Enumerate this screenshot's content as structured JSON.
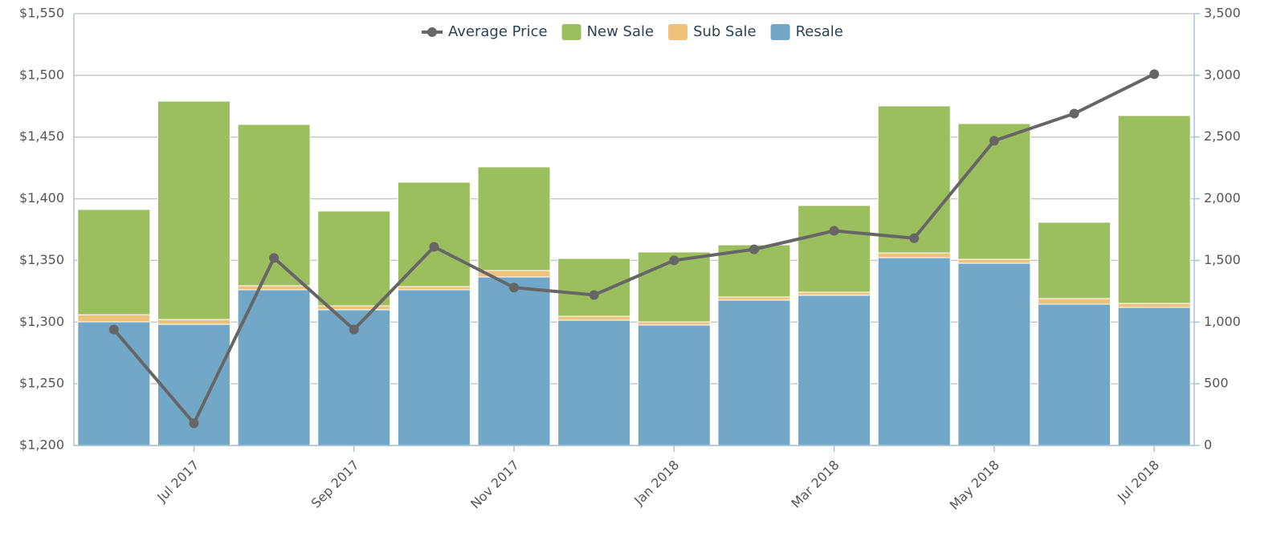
{
  "chart_data": {
    "type": "bar",
    "categories": [
      null,
      "Jul 2017",
      null,
      "Sep 2017",
      null,
      "Nov 2017",
      null,
      "Jan 2018",
      null,
      "Mar 2018",
      null,
      "May 2018",
      null,
      "Jul 2018"
    ],
    "series": [
      {
        "name": "Average Price",
        "type": "line",
        "color": "#666666",
        "values": [
          1294,
          1218,
          1352,
          1294,
          1361,
          1328,
          1322,
          1350,
          1359,
          1374,
          1368,
          1447,
          1469,
          1501
        ]
      },
      {
        "name": "New Sale",
        "color": "#9bbf5f",
        "axis": "y2",
        "values": [
          853,
          1770,
          1307,
          768,
          846,
          840,
          469,
          566,
          422,
          702,
          1191,
          1100,
          618,
          1522
        ]
      },
      {
        "name": "Sub Sale",
        "color": "#eec27a",
        "axis": "y2",
        "values": [
          58,
          39,
          33,
          32,
          26,
          52,
          32,
          26,
          26,
          26,
          39,
          32,
          46,
          33
        ]
      },
      {
        "name": "Resale",
        "color": "#72a7c8",
        "axis": "y2",
        "values": [
          1002,
          982,
          1262,
          1100,
          1262,
          1366,
          1015,
          976,
          1178,
          1217,
          1522,
          1477,
          1145,
          1119
        ]
      }
    ],
    "ylim": [
      1200,
      1550
    ],
    "yticks": [
      {
        "value": 1200,
        "label": "$1,200"
      },
      {
        "value": 1250,
        "label": "$1,250"
      },
      {
        "value": 1300,
        "label": "$1,300"
      },
      {
        "value": 1350,
        "label": "$1,350"
      },
      {
        "value": 1400,
        "label": "$1,400"
      },
      {
        "value": 1450,
        "label": "$1,450"
      },
      {
        "value": 1500,
        "label": "$1,500"
      },
      {
        "value": 1550,
        "label": "$1,550"
      }
    ],
    "y2lim": [
      0,
      3500
    ],
    "y2ticks": [
      0,
      500,
      {
        "value": 1000,
        "label": "1,000"
      },
      {
        "value": 1500,
        "label": "1,500"
      },
      {
        "value": 2000,
        "label": "2,000"
      },
      {
        "value": 2500,
        "label": "2,500"
      },
      {
        "value": 3000,
        "label": "3,000"
      },
      {
        "value": 3500,
        "label": "3,500"
      }
    ],
    "grid": true,
    "legend": "top"
  }
}
